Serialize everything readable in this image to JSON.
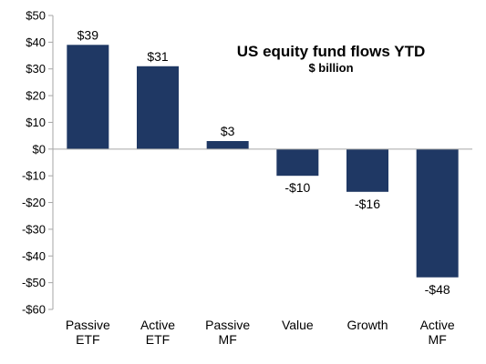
{
  "chart_data": {
    "type": "bar",
    "title": "US equity fund flows YTD",
    "subtitle": "$ billion",
    "xlabel": "",
    "ylabel": "",
    "ylim": [
      -60,
      50
    ],
    "yticks": [
      50,
      40,
      30,
      20,
      10,
      0,
      -10,
      -20,
      -30,
      -40,
      -50,
      -60
    ],
    "ytick_labels": [
      "$50",
      "$40",
      "$30",
      "$20",
      "$10",
      "$0",
      "-$10",
      "-$20",
      "-$30",
      "-$40",
      "-$50",
      "-$60"
    ],
    "categories": [
      [
        "Passive",
        "ETF"
      ],
      [
        "Active",
        "ETF"
      ],
      [
        "Passive",
        "MF"
      ],
      [
        "Value"
      ],
      [
        "Growth"
      ],
      [
        "Active",
        "MF"
      ]
    ],
    "values": [
      39,
      31,
      3,
      -10,
      -16,
      -48
    ],
    "value_labels": [
      "$39",
      "$31",
      "$3",
      "-$10",
      "-$16",
      "-$48"
    ],
    "bar_color": "#1f3864",
    "grid": false,
    "legend": "none"
  }
}
